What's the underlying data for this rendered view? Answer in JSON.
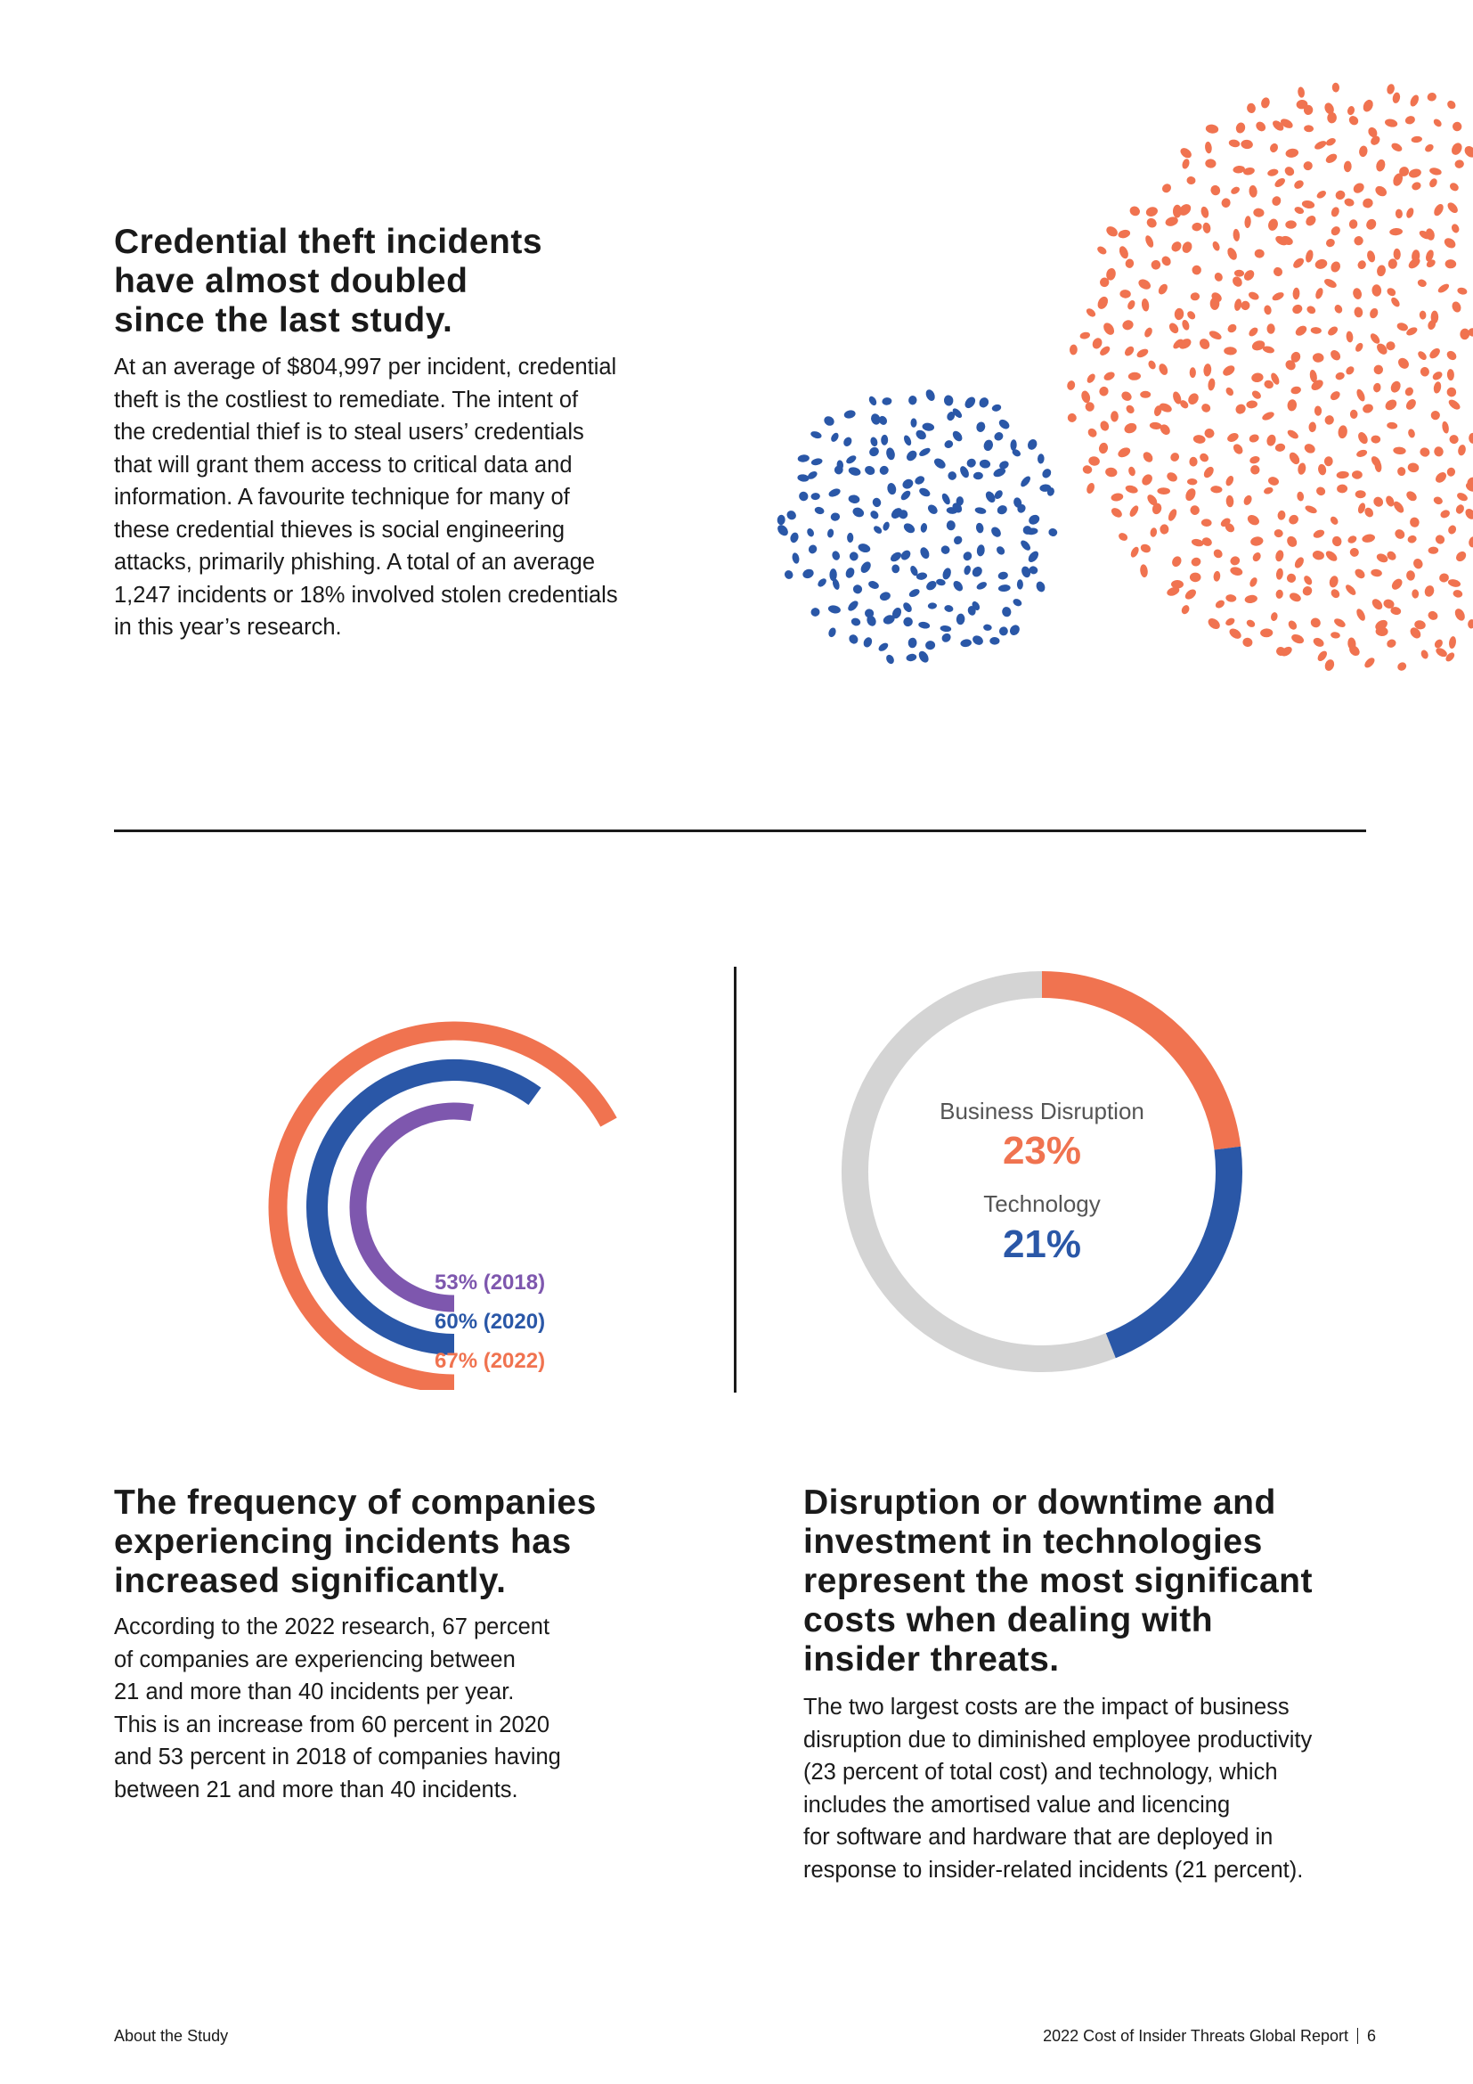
{
  "top_section": {
    "heading": [
      "Credential theft incidents",
      "have almost doubled",
      "since the last study."
    ],
    "body": [
      "At an average of $804,997 per incident, credential",
      "theft is the costliest to remediate. The intent of",
      "the credential thief is to steal users’ credentials",
      "that will grant them access to critical data and",
      "information. A favourite technique for many of",
      "these credential thieves is social engineering",
      "attacks, primarily phishing. A total of an average",
      "1,247 incidents or 18% involved stolen credentials",
      "in this year’s research."
    ]
  },
  "colors": {
    "orange": "#f07350",
    "blue": "#2a57a7",
    "purple": "#7e57ae",
    "grey": "#d4d4d4",
    "text": "#1a1a1a"
  },
  "chart_data": [
    {
      "type": "radial-bar",
      "series": [
        {
          "name": "53% (2018)",
          "label": "53% (2018)",
          "value": 53,
          "color": "#7e57ae"
        },
        {
          "name": "60% (2020)",
          "label": "60% (2020)",
          "value": 60,
          "color": "#2a57a7"
        },
        {
          "name": "67% (2022)",
          "label": "67% (2022)",
          "value": 67,
          "color": "#f07350"
        }
      ]
    },
    {
      "type": "pie",
      "slices": [
        {
          "name": "Business Disruption",
          "value": 23,
          "label": "23%",
          "color": "#f07350"
        },
        {
          "name": "Technology",
          "value": 21,
          "label": "21%",
          "color": "#2a57a7"
        },
        {
          "name": "Other",
          "value": 56,
          "color": "#d4d4d4"
        }
      ]
    }
  ],
  "left_section": {
    "heading": [
      "The frequency of companies",
      "experiencing incidents has",
      "increased significantly."
    ],
    "body": [
      "According to the 2022 research, 67 percent",
      "of companies are experiencing between",
      "21 and more than 40 incidents per year.",
      "This is an increase from 60 percent in 2020",
      "and 53 percent in 2018 of companies having",
      "between 21 and more than 40 incidents."
    ]
  },
  "right_section": {
    "heading": [
      "Disruption or downtime and",
      "investment in technologies",
      "represent the most significant",
      "costs when dealing with",
      "insider threats."
    ],
    "body": [
      "The two largest costs are the impact of business",
      "disruption due to diminished employee productivity",
      "(23 percent of total cost) and technology, which",
      "includes the amortised value and licencing",
      "for software and hardware that are deployed in",
      "response to insider-related incidents (21 percent)."
    ]
  },
  "footer": {
    "left": "About the Study",
    "right": "2022 Cost of Insider Threats Global Report",
    "page": "6"
  }
}
